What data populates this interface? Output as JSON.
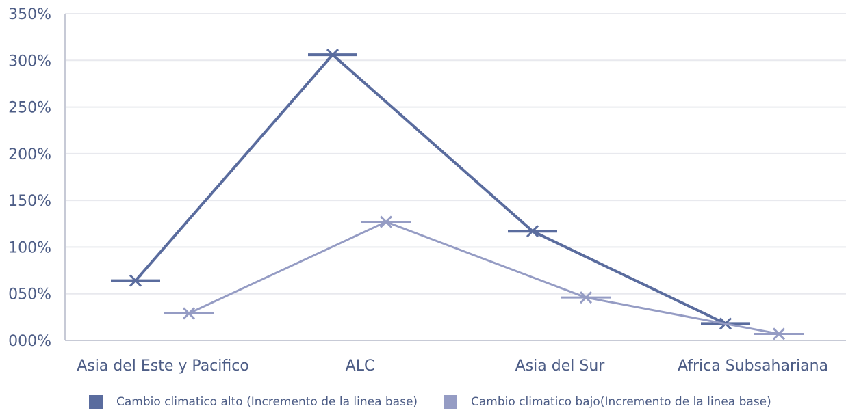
{
  "chart_data": {
    "type": "line",
    "categories": [
      "Asia del Este y Pacifico",
      "ALC",
      "Asia del Sur",
      "Africa Subsahariana"
    ],
    "y_ticks": [
      "000%",
      "050%",
      "100%",
      "150%",
      "200%",
      "250%",
      "300%",
      "350%"
    ],
    "ylim": [
      0,
      350
    ],
    "grid": true,
    "legend_position": "bottom",
    "series": [
      {
        "name": "Cambio climatico alto (Incremento de la linea base)",
        "values": [
          64,
          306,
          117,
          18
        ],
        "color": "#5a6c9e",
        "marker": "x-with-dash"
      },
      {
        "name": "Cambio climatico bajo(Incremento de la linea base)",
        "values": [
          29,
          127,
          46,
          7
        ],
        "color": "#959cc4",
        "marker": "x-with-dash"
      }
    ]
  }
}
